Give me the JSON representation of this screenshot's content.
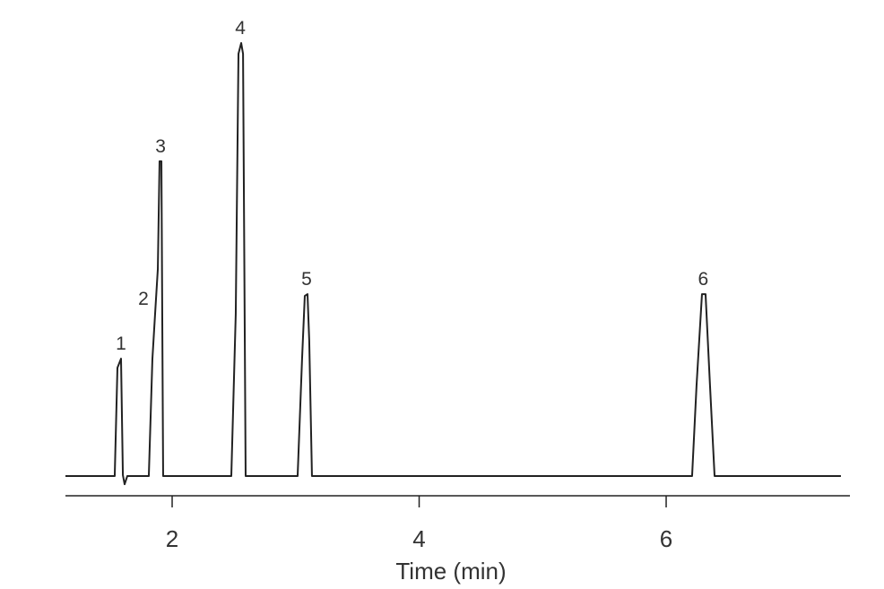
{
  "chart_data": {
    "type": "line",
    "xlabel": "Time (min)",
    "xlim": [
      1.136,
      7.488
    ],
    "xticks": [
      2,
      4,
      6
    ],
    "ylim": [
      -4.5,
      105.5
    ],
    "series": [
      {
        "color": "#222222",
        "x": [
          1.136,
          1.535,
          1.557,
          1.586,
          1.601,
          1.615,
          1.637,
          1.811,
          1.84,
          1.862,
          1.884,
          1.898,
          1.913,
          1.927,
          2.479,
          2.515,
          2.537,
          2.559,
          2.574,
          2.595,
          3.016,
          3.052,
          3.074,
          3.096,
          3.11,
          3.132,
          6.21,
          6.246,
          6.29,
          6.319,
          6.355,
          6.392,
          7.415
        ],
        "values": [
          0,
          0,
          25,
          27.1,
          0.2,
          -1.9,
          0,
          0,
          27,
          37.5,
          47.8,
          72.7,
          72.7,
          0,
          0,
          37.5,
          97.5,
          100,
          97.5,
          0,
          0,
          27.1,
          41.6,
          42,
          31.3,
          0,
          0,
          20.9,
          42,
          42,
          20.9,
          0,
          0
        ]
      }
    ],
    "annotations": [
      {
        "text": "1",
        "x": 1.586,
        "y": 27.1
      },
      {
        "text": "2",
        "x": 1.862,
        "y": 37.5
      },
      {
        "text": "3",
        "x": 1.906,
        "y": 72.7
      },
      {
        "text": "4",
        "x": 2.552,
        "y": 100
      },
      {
        "text": "5",
        "x": 3.089,
        "y": 42
      },
      {
        "text": "6",
        "x": 6.3,
        "y": 42
      }
    ]
  }
}
